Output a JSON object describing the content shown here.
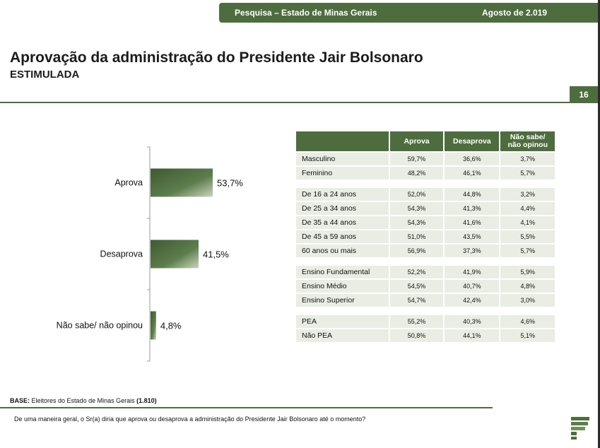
{
  "header": {
    "survey": "Pesquisa – Estado de Minas Gerais",
    "date": "Agosto de 2.019"
  },
  "title": "Aprovação da administração do Presidente Jair Bolsonaro",
  "subtitle": "ESTIMULADA",
  "page_number": "16",
  "colors": {
    "accent": "#4e6d3f",
    "row_bg": "#e9ede3"
  },
  "chart_data": [
    {
      "type": "bar",
      "orientation": "horizontal",
      "categories": [
        "Aprova",
        "Desaprova",
        "Não sabe/ não opinou"
      ],
      "values": [
        53.7,
        41.5,
        4.8
      ],
      "value_labels": [
        "53,7%",
        "41,5%",
        "4,8%"
      ],
      "xlim": [
        0,
        100
      ],
      "grid": false,
      "legend": "none"
    },
    {
      "type": "table",
      "columns": [
        "",
        "Aprova",
        "Desaprova",
        "Não sabe/ não opinou"
      ],
      "header_lines": [
        "Não sabe/",
        "não opinou"
      ],
      "groups": [
        [
          [
            "Masculino",
            "59,7%",
            "36,6%",
            "3,7%"
          ],
          [
            "Feminino",
            "48,2%",
            "46,1%",
            "5,7%"
          ]
        ],
        [
          [
            "De 16 a 24 anos",
            "52,0%",
            "44,8%",
            "3,2%"
          ],
          [
            "De 25 a 34 anos",
            "54,3%",
            "41,3%",
            "4,4%"
          ],
          [
            "De 35 a 44 anos",
            "54,3%",
            "41,6%",
            "4,1%"
          ],
          [
            "De 45 a 59 anos",
            "51,0%",
            "43,5%",
            "5,5%"
          ],
          [
            "60 anos ou mais",
            "56,9%",
            "37,3%",
            "5,7%"
          ]
        ],
        [
          [
            "Ensino Fundamental",
            "52,2%",
            "41,9%",
            "5,9%"
          ],
          [
            "Ensino Médio",
            "54,5%",
            "40,7%",
            "4,8%"
          ],
          [
            "Ensino Superior",
            "54,7%",
            "42,4%",
            "3,0%"
          ]
        ],
        [
          [
            "PEA",
            "55,2%",
            "40,3%",
            "4,6%"
          ],
          [
            "Não PEA",
            "50,8%",
            "44,1%",
            "5,1%"
          ]
        ]
      ]
    }
  ],
  "base": {
    "label": "BASE:",
    "text": "Eleitores do Estado de Minas Gerais",
    "n": "(1.810)"
  },
  "question": "De uma maneira geral, o Sr(a) diria que aprova ou desaprova a administração do Presidente Jair Bolsonaro até o momento?"
}
